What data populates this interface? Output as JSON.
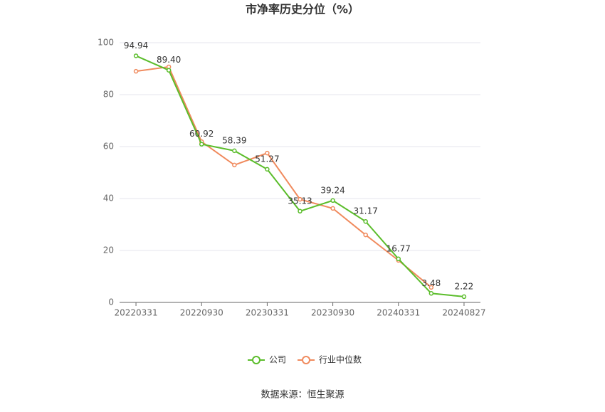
{
  "chart_data": {
    "type": "line",
    "title": "市净率历史分位（%）",
    "categories": [
      "20220331",
      null,
      "20220930",
      null,
      "20230331",
      null,
      "20230930",
      null,
      "20240331",
      null,
      "20240827"
    ],
    "series": [
      {
        "name": "公司",
        "color": "#5bbd2b",
        "values": [
          94.94,
          89.4,
          60.92,
          58.39,
          51.27,
          35.13,
          39.24,
          31.17,
          16.77,
          3.48,
          2.22
        ],
        "value_labels": [
          "94.94",
          "89.40",
          "60.92",
          "58.39",
          "51.27",
          "35.13",
          "39.24",
          "31.17",
          "16.77",
          "3.48",
          "2.22"
        ]
      },
      {
        "name": "行业中位数",
        "color": "#f08a5d",
        "values": [
          89.0,
          90.7,
          61.9,
          52.9,
          57.5,
          39.7,
          36.2,
          26.0,
          16.2,
          5.8,
          null
        ]
      }
    ],
    "ylim": [
      0,
      100
    ],
    "yticks": [
      0,
      20,
      40,
      60,
      80,
      100
    ],
    "grid": true,
    "legend": "bottom",
    "source": "数据来源：恒生聚源"
  }
}
